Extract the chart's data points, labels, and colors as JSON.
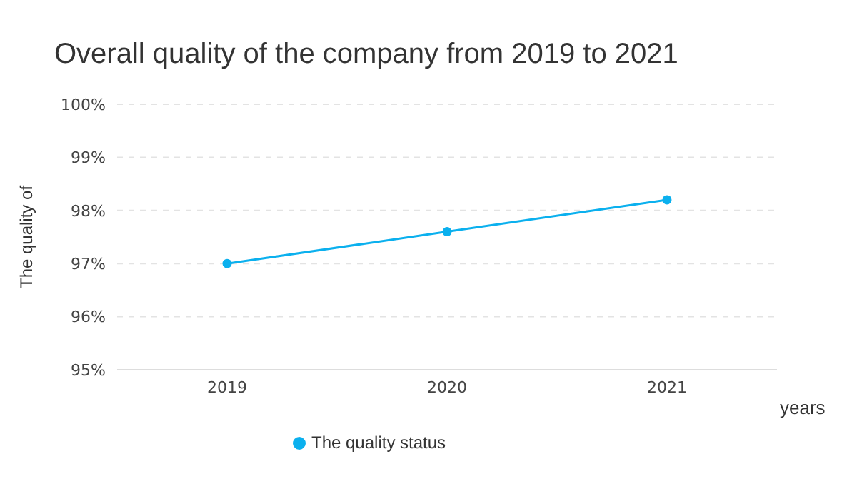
{
  "chart_data": {
    "type": "line",
    "title": "Overall quality of the company from 2019 to 2021",
    "xlabel": "years",
    "ylabel": "The quality of",
    "categories": [
      "2019",
      "2020",
      "2021"
    ],
    "series": [
      {
        "name": "The quality status",
        "color": "#0bb0ee",
        "values": [
          97,
          97.6,
          98.2
        ]
      }
    ],
    "ylim": [
      95,
      100
    ],
    "yticks": [
      {
        "value": 95,
        "label": "95%"
      },
      {
        "value": 96,
        "label": "96%"
      },
      {
        "value": 97,
        "label": "97%"
      },
      {
        "value": 98,
        "label": "98%"
      },
      {
        "value": 99,
        "label": "99%"
      },
      {
        "value": 100,
        "label": "100%"
      }
    ],
    "grid": "y",
    "legend": "bottom",
    "marker": "circle",
    "line_style": "solid"
  }
}
